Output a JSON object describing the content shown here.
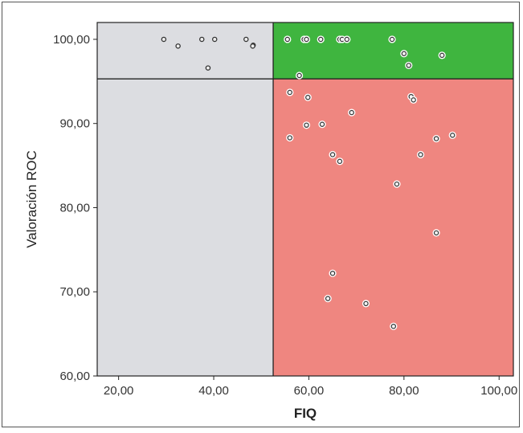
{
  "chart_data": {
    "type": "scatter",
    "xlabel": "FIQ",
    "ylabel": "Valoración ROC",
    "xlim": [
      15.5,
      103
    ],
    "ylim": [
      60,
      102
    ],
    "xticks": [
      "20,00",
      "40,00",
      "60,00",
      "80,00",
      "100,00"
    ],
    "xtick_values": [
      20,
      40,
      60,
      80,
      100
    ],
    "yticks": [
      "60,00",
      "70,00",
      "80,00",
      "90,00",
      "100,00"
    ],
    "ytick_values": [
      60,
      70,
      80,
      90,
      100
    ],
    "x_threshold": 52.5,
    "y_threshold": 95.3,
    "regions": {
      "left_color": "#dcdde1",
      "top_right_color": "#3fb53f",
      "bottom_right_color": "#ef8680"
    },
    "grid": false,
    "series": [
      {
        "marker": "light-gray-circle",
        "points": [
          [
            29.5,
            100
          ],
          [
            32.5,
            99.2
          ],
          [
            37.5,
            100
          ],
          [
            40.2,
            100
          ],
          [
            46.8,
            100
          ],
          [
            48.3,
            99.3
          ],
          [
            48.2,
            99.2
          ],
          [
            38.8,
            96.6
          ]
        ]
      },
      {
        "marker": "white-circle",
        "points": [
          [
            55.5,
            100
          ],
          [
            59.0,
            100
          ],
          [
            59.5,
            100
          ],
          [
            62.5,
            100
          ],
          [
            66.5,
            100
          ],
          [
            67.0,
            100
          ],
          [
            68.0,
            100
          ],
          [
            77.5,
            100
          ],
          [
            80.0,
            98.3
          ],
          [
            88.0,
            98.1
          ],
          [
            81.0,
            96.9
          ],
          [
            58.0,
            95.7
          ],
          [
            56.0,
            93.7
          ],
          [
            81.5,
            93.2
          ],
          [
            82.0,
            92.8
          ],
          [
            59.8,
            93.1
          ],
          [
            69.0,
            91.3
          ],
          [
            59.5,
            89.8
          ],
          [
            62.8,
            89.9
          ],
          [
            56.0,
            88.3
          ],
          [
            86.8,
            88.2
          ],
          [
            90.2,
            88.6
          ],
          [
            65.0,
            86.3
          ],
          [
            83.5,
            86.3
          ],
          [
            66.5,
            85.5
          ],
          [
            78.5,
            82.8
          ],
          [
            86.8,
            77.0
          ],
          [
            65.0,
            72.2
          ],
          [
            64.0,
            69.2
          ],
          [
            72.0,
            68.6
          ],
          [
            77.8,
            65.9
          ]
        ]
      }
    ]
  }
}
